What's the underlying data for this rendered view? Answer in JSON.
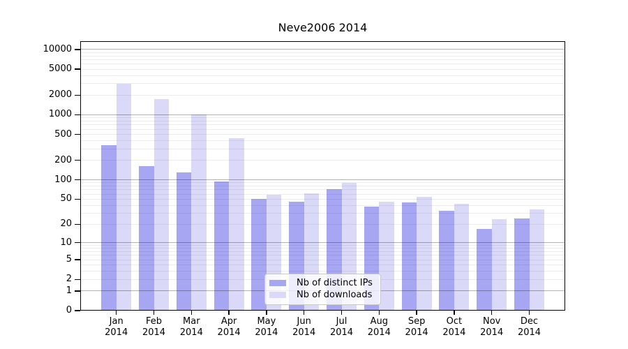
{
  "figure": {
    "background": "#ffffff"
  },
  "chart_data": {
    "type": "bar",
    "title": "Neve2006 2014",
    "x_categories": [
      {
        "month": "Jan",
        "year": "2014"
      },
      {
        "month": "Feb",
        "year": "2014"
      },
      {
        "month": "Mar",
        "year": "2014"
      },
      {
        "month": "Apr",
        "year": "2014"
      },
      {
        "month": "May",
        "year": "2014"
      },
      {
        "month": "Jun",
        "year": "2014"
      },
      {
        "month": "Jul",
        "year": "2014"
      },
      {
        "month": "Aug",
        "year": "2014"
      },
      {
        "month": "Sep",
        "year": "2014"
      },
      {
        "month": "Oct",
        "year": "2014"
      },
      {
        "month": "Nov",
        "year": "2014"
      },
      {
        "month": "Dec",
        "year": "2014"
      }
    ],
    "series": [
      {
        "key": "distinct-ips",
        "name": "Nb of distinct IPs",
        "color": "#a6a6f2",
        "values": [
          340,
          162,
          130,
          95,
          50,
          46,
          71,
          38,
          44,
          33,
          17,
          25
        ]
      },
      {
        "key": "downloads",
        "name": "Nb of downloads",
        "color": "#dadaf8",
        "values": [
          3000,
          1750,
          1000,
          435,
          59,
          61,
          90,
          46,
          55,
          42,
          24,
          35
        ]
      }
    ],
    "yscale": "log10(1+v)",
    "yticks": [
      0,
      1,
      2,
      5,
      10,
      20,
      50,
      100,
      200,
      500,
      1000,
      2000,
      5000,
      10000
    ],
    "major_gridlines": [
      1,
      10,
      100,
      1000,
      10000
    ],
    "minor_gridline_decades": [
      1,
      10,
      100,
      1000
    ],
    "ylim": [
      0,
      13000
    ],
    "xlabel": "",
    "ylabel": "",
    "grid": true,
    "legend_position": "lower center"
  },
  "colors": {
    "bar_distinct_ips": "#a6a6f2",
    "bar_downloads": "#dadaf8",
    "grid_minor": "#ededed",
    "grid_major": "#b3b3b3",
    "axis": "#000000"
  }
}
